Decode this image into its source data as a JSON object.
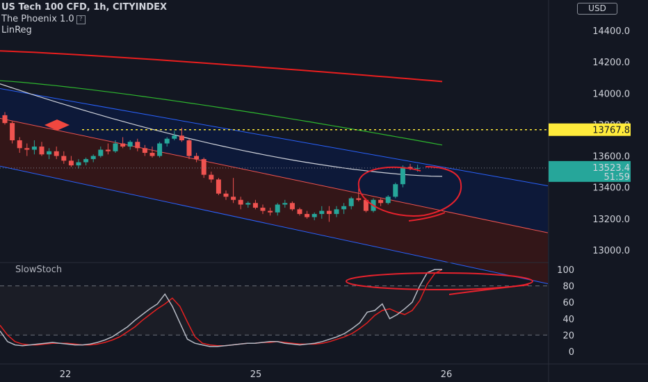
{
  "header": {
    "title": "US Tech 100 CFD, 1h, CITYINDEX",
    "indicator1": "The Phoenix 1.0",
    "indicator1_help": "?",
    "indicator2": "LinReg"
  },
  "currency_button": "USD",
  "oscillator_title": "SlowStoch",
  "colors": {
    "background": "#131722",
    "bull": "#26a69a",
    "bear": "#ef5350",
    "dotted_level": "#ffeb3b",
    "price_tag": "#26a69a",
    "channel_blue": "#2962ff",
    "ma_red": "#e91e1e",
    "ma_green": "#2eb82e",
    "ma_white": "#d1d4dc",
    "annotation": "#e8222d"
  },
  "chart_data": [
    {
      "type": "candlestick",
      "title": "US Tech 100 CFD, 1h, CITYINDEX",
      "ylim": [
        12850,
        14500
      ],
      "y_ticks": [
        "14400.0",
        "14200.0",
        "14000.0",
        "13800.0",
        "13600.0",
        "13400.0",
        "13200.0",
        "13000.0"
      ],
      "x_ticks": [
        "22",
        "25",
        "26"
      ],
      "levels": {
        "dotted_level": "13767.8",
        "last_price": "13523.4",
        "countdown": "51:59"
      },
      "candles": [
        [
          13860,
          13880,
          13800,
          13810
        ],
        [
          13810,
          13820,
          13680,
          13700
        ],
        [
          13700,
          13720,
          13620,
          13650
        ],
        [
          13650,
          13680,
          13600,
          13640
        ],
        [
          13640,
          13700,
          13610,
          13660
        ],
        [
          13660,
          13690,
          13600,
          13610
        ],
        [
          13610,
          13650,
          13580,
          13630
        ],
        [
          13630,
          13660,
          13580,
          13600
        ],
        [
          13600,
          13630,
          13550,
          13570
        ],
        [
          13570,
          13600,
          13530,
          13540
        ],
        [
          13540,
          13580,
          13520,
          13560
        ],
        [
          13560,
          13590,
          13540,
          13580
        ],
        [
          13580,
          13610,
          13560,
          13600
        ],
        [
          13600,
          13660,
          13590,
          13640
        ],
        [
          13640,
          13680,
          13610,
          13630
        ],
        [
          13630,
          13700,
          13620,
          13680
        ],
        [
          13680,
          13720,
          13650,
          13660
        ],
        [
          13660,
          13700,
          13640,
          13690
        ],
        [
          13690,
          13710,
          13630,
          13650
        ],
        [
          13650,
          13670,
          13600,
          13620
        ],
        [
          13620,
          13660,
          13590,
          13600
        ],
        [
          13600,
          13690,
          13590,
          13680
        ],
        [
          13680,
          13720,
          13660,
          13710
        ],
        [
          13710,
          13760,
          13700,
          13730
        ],
        [
          13730,
          13780,
          13690,
          13700
        ],
        [
          13700,
          13710,
          13580,
          13600
        ],
        [
          13600,
          13620,
          13560,
          13580
        ],
        [
          13580,
          13590,
          13460,
          13480
        ],
        [
          13480,
          13500,
          13430,
          13450
        ],
        [
          13450,
          13460,
          13350,
          13360
        ],
        [
          13360,
          13380,
          13320,
          13340
        ],
        [
          13340,
          13460,
          13300,
          13320
        ],
        [
          13320,
          13340,
          13260,
          13290
        ],
        [
          13290,
          13310,
          13270,
          13300
        ],
        [
          13300,
          13320,
          13260,
          13270
        ],
        [
          13270,
          13290,
          13230,
          13250
        ],
        [
          13250,
          13270,
          13220,
          13240
        ],
        [
          13240,
          13300,
          13220,
          13290
        ],
        [
          13290,
          13320,
          13270,
          13300
        ],
        [
          13300,
          13310,
          13250,
          13260
        ],
        [
          13260,
          13270,
          13220,
          13230
        ],
        [
          13230,
          13250,
          13200,
          13210
        ],
        [
          13210,
          13240,
          13190,
          13230
        ],
        [
          13230,
          13280,
          13200,
          13250
        ],
        [
          13250,
          13280,
          13180,
          13230
        ],
        [
          13230,
          13280,
          13210,
          13260
        ],
        [
          13260,
          13300,
          13230,
          13280
        ],
        [
          13280,
          13340,
          13260,
          13330
        ],
        [
          13330,
          13430,
          13310,
          13320
        ],
        [
          13320,
          13330,
          13240,
          13250
        ],
        [
          13250,
          13330,
          13240,
          13320
        ],
        [
          13320,
          13330,
          13280,
          13300
        ],
        [
          13300,
          13350,
          13290,
          13340
        ],
        [
          13340,
          13430,
          13330,
          13420
        ],
        [
          13420,
          13540,
          13400,
          13530
        ],
        [
          13530,
          13550,
          13510,
          13520
        ],
        [
          13520,
          13545,
          13500,
          13523.4
        ]
      ],
      "linreg_channel": {
        "mid": {
          "start": 13840,
          "end": 13110
        },
        "upper": {
          "start": 14030,
          "end": 13410
        },
        "lower": {
          "start": 13535,
          "end": 12785
        }
      },
      "moving_averages": [
        {
          "color": "red",
          "start": 14270,
          "end": 14075
        },
        {
          "color": "green",
          "start": 14080,
          "end": 13670
        },
        {
          "color": "white",
          "start": 14060,
          "end": 13470
        }
      ]
    },
    {
      "type": "line",
      "title": "SlowStoch",
      "ylim": [
        0,
        100
      ],
      "y_ticks": [
        "100",
        "80",
        "60",
        "40",
        "20",
        "0"
      ],
      "bands": [
        20,
        80
      ],
      "k": [
        25,
        12,
        8,
        7,
        8,
        9,
        10,
        11,
        10,
        9,
        8,
        8,
        9,
        11,
        14,
        18,
        24,
        30,
        38,
        45,
        52,
        58,
        70,
        55,
        35,
        15,
        10,
        8,
        6,
        6,
        7,
        8,
        9,
        10,
        10,
        11,
        12,
        12,
        10,
        9,
        8,
        9,
        10,
        12,
        15,
        18,
        22,
        28,
        35,
        48,
        50,
        58,
        40,
        45,
        52,
        60,
        80,
        96,
        100,
        100
      ],
      "d": [
        32,
        20,
        12,
        9,
        8,
        8,
        9,
        10,
        10,
        10,
        9,
        8,
        8,
        9,
        11,
        14,
        18,
        24,
        30,
        38,
        45,
        52,
        58,
        65,
        55,
        36,
        18,
        10,
        8,
        7,
        7,
        8,
        9,
        10,
        10,
        11,
        11,
        12,
        11,
        10,
        9,
        9,
        9,
        10,
        12,
        15,
        18,
        22,
        28,
        35,
        44,
        50,
        52,
        48,
        45,
        50,
        62,
        82,
        95,
        100
      ]
    }
  ]
}
